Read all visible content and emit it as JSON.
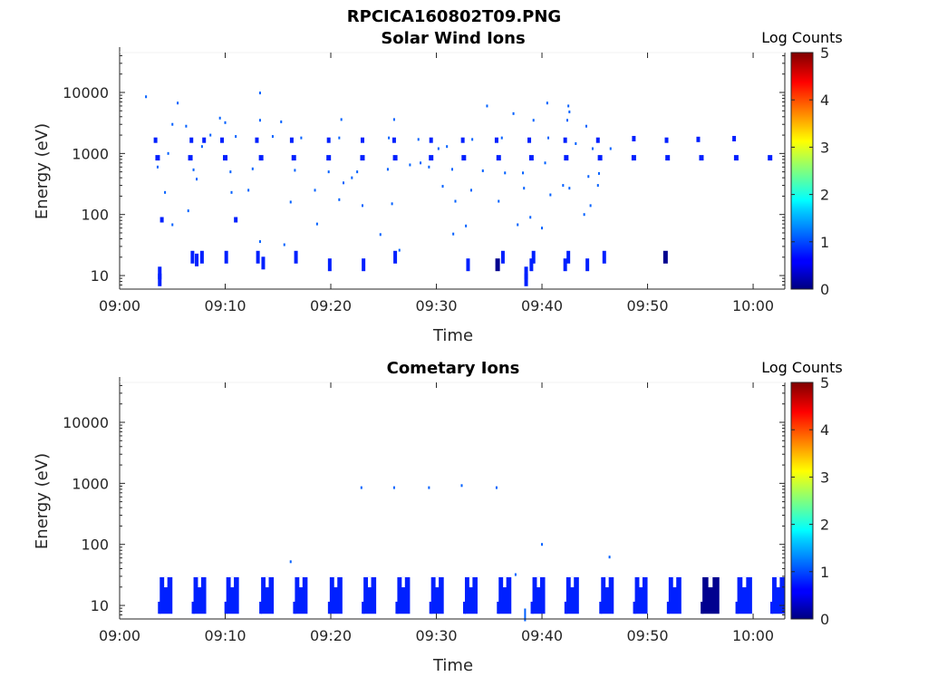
{
  "figure_title": "RPCICA160802T09.PNG",
  "colors": {
    "cell_dark": "#00008f",
    "cell_medium": "#0020ff",
    "cell_light": "#0060ff"
  },
  "chart_data": [
    {
      "type": "heatmap",
      "title": "Solar Wind Ions",
      "xlabel": "Time",
      "ylabel": "Energy (eV)",
      "y_scale": "log",
      "xlim": [
        "09:00",
        "10:03"
      ],
      "ylim": [
        6,
        45000
      ],
      "x_ticks": [
        "09:00",
        "09:10",
        "09:20",
        "09:30",
        "09:40",
        "09:50",
        "10:00"
      ],
      "y_ticks": [
        "10",
        "100",
        "1000",
        "10000"
      ],
      "colorbar": {
        "label": "Log Counts",
        "ticks": [
          "0",
          "1",
          "2",
          "3",
          "4",
          "5"
        ],
        "range": [
          0,
          5
        ]
      },
      "points": [
        {
          "t": 2.5,
          "e": 8500,
          "v": 0.3
        },
        {
          "t": 5.5,
          "e": 6700,
          "v": 0.3
        },
        {
          "t": 13.3,
          "e": 9800,
          "v": 0.3
        },
        {
          "t": 3.4,
          "e": 1650,
          "v": 0.5
        },
        {
          "t": 6.8,
          "e": 1650,
          "v": 0.5
        },
        {
          "t": 8,
          "e": 1650,
          "v": 0.5
        },
        {
          "t": 9.7,
          "e": 1650,
          "v": 0.5
        },
        {
          "t": 13,
          "e": 1650,
          "v": 0.5
        },
        {
          "t": 16.3,
          "e": 1650,
          "v": 0.5
        },
        {
          "t": 19.8,
          "e": 1650,
          "v": 0.5
        },
        {
          "t": 23,
          "e": 1650,
          "v": 0.5
        },
        {
          "t": 26,
          "e": 1650,
          "v": 0.5
        },
        {
          "t": 29.5,
          "e": 1650,
          "v": 0.5
        },
        {
          "t": 32.5,
          "e": 1650,
          "v": 0.5
        },
        {
          "t": 35.7,
          "e": 1650,
          "v": 0.5
        },
        {
          "t": 38.8,
          "e": 1650,
          "v": 0.5
        },
        {
          "t": 42.2,
          "e": 1650,
          "v": 0.5
        },
        {
          "t": 45.3,
          "e": 1650,
          "v": 0.5
        },
        {
          "t": 48.7,
          "e": 1750,
          "v": 0.6
        },
        {
          "t": 51.8,
          "e": 1650,
          "v": 0.6
        },
        {
          "t": 54.8,
          "e": 1700,
          "v": 0.6
        },
        {
          "t": 58.2,
          "e": 1750,
          "v": 0.6
        },
        {
          "t": 3.6,
          "e": 850,
          "v": 0.7
        },
        {
          "t": 6.7,
          "e": 850,
          "v": 0.7
        },
        {
          "t": 10,
          "e": 850,
          "v": 0.7
        },
        {
          "t": 13.4,
          "e": 850,
          "v": 0.7
        },
        {
          "t": 16.5,
          "e": 850,
          "v": 0.7
        },
        {
          "t": 19.8,
          "e": 850,
          "v": 0.7
        },
        {
          "t": 23,
          "e": 850,
          "v": 0.7
        },
        {
          "t": 26.1,
          "e": 850,
          "v": 0.7
        },
        {
          "t": 29.5,
          "e": 850,
          "v": 0.7
        },
        {
          "t": 32.6,
          "e": 850,
          "v": 0.7
        },
        {
          "t": 35.9,
          "e": 850,
          "v": 0.7
        },
        {
          "t": 39,
          "e": 850,
          "v": 0.7
        },
        {
          "t": 42.3,
          "e": 850,
          "v": 0.7
        },
        {
          "t": 45.5,
          "e": 850,
          "v": 0.7
        },
        {
          "t": 48.7,
          "e": 850,
          "v": 0.8
        },
        {
          "t": 51.9,
          "e": 850,
          "v": 0.8
        },
        {
          "t": 55.1,
          "e": 850,
          "v": 0.8
        },
        {
          "t": 58.4,
          "e": 850,
          "v": 0.8
        },
        {
          "t": 61.6,
          "e": 850,
          "v": 0.8
        },
        {
          "t": 5,
          "e": 3000,
          "v": 0.3
        },
        {
          "t": 9.5,
          "e": 3800,
          "v": 0.3
        },
        {
          "t": 10,
          "e": 3200,
          "v": 0.3
        },
        {
          "t": 13.3,
          "e": 3500,
          "v": 0.3
        },
        {
          "t": 15.3,
          "e": 3300,
          "v": 0.3
        },
        {
          "t": 21,
          "e": 3600,
          "v": 0.3
        },
        {
          "t": 26,
          "e": 3600,
          "v": 0.3
        },
        {
          "t": 34.8,
          "e": 6000,
          "v": 0.3
        },
        {
          "t": 37.3,
          "e": 4500,
          "v": 0.3
        },
        {
          "t": 40.5,
          "e": 6700,
          "v": 0.3
        },
        {
          "t": 42.5,
          "e": 6000,
          "v": 0.3
        },
        {
          "t": 42.6,
          "e": 4800,
          "v": 0.3
        },
        {
          "t": 42.4,
          "e": 3500,
          "v": 0.3
        },
        {
          "t": 44.2,
          "e": 2800,
          "v": 0.3
        },
        {
          "t": 39.2,
          "e": 3500,
          "v": 0.3
        },
        {
          "t": 6.3,
          "e": 2800,
          "v": 0.3
        },
        {
          "t": 8.6,
          "e": 2000,
          "v": 0.3
        },
        {
          "t": 11,
          "e": 1900,
          "v": 0.3
        },
        {
          "t": 14.5,
          "e": 1900,
          "v": 0.3
        },
        {
          "t": 17.2,
          "e": 1800,
          "v": 0.3
        },
        {
          "t": 20.8,
          "e": 1800,
          "v": 0.3
        },
        {
          "t": 25.5,
          "e": 1800,
          "v": 0.3
        },
        {
          "t": 28.3,
          "e": 1700,
          "v": 0.3
        },
        {
          "t": 33.4,
          "e": 1700,
          "v": 0.3
        },
        {
          "t": 36.2,
          "e": 1800,
          "v": 0.3
        },
        {
          "t": 40.6,
          "e": 1800,
          "v": 0.3
        },
        {
          "t": 43.2,
          "e": 1450,
          "v": 0.3
        },
        {
          "t": 46.5,
          "e": 1200,
          "v": 0.3
        },
        {
          "t": 44.8,
          "e": 1200,
          "v": 0.3
        },
        {
          "t": 31,
          "e": 1300,
          "v": 0.3
        },
        {
          "t": 30.2,
          "e": 1200,
          "v": 0.3
        },
        {
          "t": 7.8,
          "e": 1300,
          "v": 0.3
        },
        {
          "t": 4.6,
          "e": 1000,
          "v": 0.3
        },
        {
          "t": 3.6,
          "e": 600,
          "v": 0.3
        },
        {
          "t": 7,
          "e": 540,
          "v": 0.3
        },
        {
          "t": 10.5,
          "e": 500,
          "v": 0.3
        },
        {
          "t": 12.6,
          "e": 560,
          "v": 0.3
        },
        {
          "t": 16.6,
          "e": 530,
          "v": 0.3
        },
        {
          "t": 19.8,
          "e": 500,
          "v": 0.3
        },
        {
          "t": 22.5,
          "e": 500,
          "v": 0.3
        },
        {
          "t": 25.4,
          "e": 550,
          "v": 0.3
        },
        {
          "t": 27.5,
          "e": 650,
          "v": 0.3
        },
        {
          "t": 28.5,
          "e": 700,
          "v": 0.3
        },
        {
          "t": 29.3,
          "e": 600,
          "v": 0.3
        },
        {
          "t": 31.5,
          "e": 550,
          "v": 0.3
        },
        {
          "t": 34.4,
          "e": 520,
          "v": 0.3
        },
        {
          "t": 36.5,
          "e": 480,
          "v": 0.3
        },
        {
          "t": 38.2,
          "e": 480,
          "v": 0.3
        },
        {
          "t": 40.3,
          "e": 700,
          "v": 0.3
        },
        {
          "t": 44.4,
          "e": 420,
          "v": 0.3
        },
        {
          "t": 45.4,
          "e": 470,
          "v": 0.3
        },
        {
          "t": 22,
          "e": 400,
          "v": 0.3
        },
        {
          "t": 21.2,
          "e": 330,
          "v": 0.3
        },
        {
          "t": 7.3,
          "e": 380,
          "v": 0.3
        },
        {
          "t": 4.3,
          "e": 230,
          "v": 0.3
        },
        {
          "t": 10.6,
          "e": 230,
          "v": 0.3
        },
        {
          "t": 12.2,
          "e": 250,
          "v": 0.3
        },
        {
          "t": 18.5,
          "e": 250,
          "v": 0.3
        },
        {
          "t": 33.3,
          "e": 250,
          "v": 0.3
        },
        {
          "t": 30.6,
          "e": 290,
          "v": 0.3
        },
        {
          "t": 38.3,
          "e": 270,
          "v": 0.3
        },
        {
          "t": 40.8,
          "e": 210,
          "v": 0.3
        },
        {
          "t": 42,
          "e": 300,
          "v": 0.3
        },
        {
          "t": 42.6,
          "e": 270,
          "v": 0.3
        },
        {
          "t": 45.3,
          "e": 300,
          "v": 0.3
        },
        {
          "t": 16.2,
          "e": 160,
          "v": 0.3
        },
        {
          "t": 20.8,
          "e": 175,
          "v": 0.3
        },
        {
          "t": 23,
          "e": 140,
          "v": 0.3
        },
        {
          "t": 25.8,
          "e": 150,
          "v": 0.3
        },
        {
          "t": 31.8,
          "e": 165,
          "v": 0.3
        },
        {
          "t": 35.9,
          "e": 165,
          "v": 0.3
        },
        {
          "t": 44.6,
          "e": 140,
          "v": 0.3
        },
        {
          "t": 6.5,
          "e": 115,
          "v": 0.3
        },
        {
          "t": 44,
          "e": 100,
          "v": 0.3
        },
        {
          "t": 38.9,
          "e": 90,
          "v": 0.3
        },
        {
          "t": 4,
          "e": 82,
          "v": 0.5
        },
        {
          "t": 11,
          "e": 82,
          "v": 0.5
        },
        {
          "t": 5,
          "e": 68,
          "v": 0.3
        },
        {
          "t": 18.7,
          "e": 70,
          "v": 0.3
        },
        {
          "t": 32.8,
          "e": 65,
          "v": 0.3
        },
        {
          "t": 37.7,
          "e": 68,
          "v": 0.3
        },
        {
          "t": 40,
          "e": 60,
          "v": 0.3
        },
        {
          "t": 31.6,
          "e": 48,
          "v": 0.3
        },
        {
          "t": 24.7,
          "e": 47,
          "v": 0.3
        },
        {
          "t": 13.3,
          "e": 36,
          "v": 0.4
        },
        {
          "t": 15.6,
          "e": 32,
          "v": 0.4
        },
        {
          "t": 26.5,
          "e": 26,
          "v": 0.4
        },
        {
          "t": 6.9,
          "e": 20,
          "v": 0.6
        },
        {
          "t": 7.3,
          "e": 18,
          "v": 0.6
        },
        {
          "t": 7.8,
          "e": 20,
          "v": 0.6
        },
        {
          "t": 10.1,
          "e": 20,
          "v": 0.6
        },
        {
          "t": 13.1,
          "e": 20,
          "v": 0.6
        },
        {
          "t": 13.6,
          "e": 16,
          "v": 0.6
        },
        {
          "t": 16.7,
          "e": 20,
          "v": 0.6
        },
        {
          "t": 26.1,
          "e": 20,
          "v": 0.6
        },
        {
          "t": 36.3,
          "e": 20,
          "v": 0.6
        },
        {
          "t": 39.2,
          "e": 20,
          "v": 0.6
        },
        {
          "t": 42.5,
          "e": 20,
          "v": 0.6
        },
        {
          "t": 45.9,
          "e": 20,
          "v": 0.6
        },
        {
          "t": 51.7,
          "e": 20,
          "v": 0.9
        },
        {
          "t": 19.9,
          "e": 15,
          "v": 0.6
        },
        {
          "t": 23.1,
          "e": 15,
          "v": 0.6
        },
        {
          "t": 33,
          "e": 15,
          "v": 0.6
        },
        {
          "t": 35.8,
          "e": 15,
          "v": 0.9
        },
        {
          "t": 39,
          "e": 15,
          "v": 0.6
        },
        {
          "t": 42.2,
          "e": 15,
          "v": 0.6
        },
        {
          "t": 44.3,
          "e": 15,
          "v": 0.6
        },
        {
          "t": 3.8,
          "e": 11,
          "v": 0.6
        },
        {
          "t": 3.8,
          "e": 8.5,
          "v": 0.6
        },
        {
          "t": 38.5,
          "e": 11,
          "v": 0.6
        },
        {
          "t": 38.5,
          "e": 8.5,
          "v": 0.6
        }
      ]
    },
    {
      "type": "heatmap",
      "title": "Cometary Ions",
      "xlabel": "Time",
      "ylabel": "Energy (eV)",
      "y_scale": "log",
      "xlim": [
        "09:00",
        "10:03"
      ],
      "ylim": [
        6,
        45000
      ],
      "x_ticks": [
        "09:00",
        "09:10",
        "09:20",
        "09:30",
        "09:40",
        "09:50",
        "10:00"
      ],
      "y_ticks": [
        "10",
        "100",
        "1000",
        "10000"
      ],
      "colorbar": {
        "label": "Log Counts",
        "ticks": [
          "0",
          "1",
          "2",
          "3",
          "4",
          "5"
        ],
        "range": [
          0,
          5
        ]
      },
      "blocks": [
        {
          "t": 3.8,
          "w": 1.2,
          "v": 0.6
        },
        {
          "t": 7,
          "w": 1.2,
          "v": 0.6
        },
        {
          "t": 10.1,
          "w": 1.2,
          "v": 0.6
        },
        {
          "t": 13.4,
          "w": 1.2,
          "v": 0.6
        },
        {
          "t": 16.6,
          "w": 1.2,
          "v": 0.6
        },
        {
          "t": 19.9,
          "w": 1.2,
          "v": 0.6
        },
        {
          "t": 23.1,
          "w": 1.2,
          "v": 0.6
        },
        {
          "t": 26.3,
          "w": 1.2,
          "v": 0.6
        },
        {
          "t": 29.5,
          "w": 1.2,
          "v": 0.6
        },
        {
          "t": 32.7,
          "w": 1.2,
          "v": 0.6
        },
        {
          "t": 35.9,
          "w": 1.2,
          "v": 0.6
        },
        {
          "t": 39.1,
          "w": 1.2,
          "v": 0.6
        },
        {
          "t": 42.3,
          "w": 1.2,
          "v": 0.6
        },
        {
          "t": 45.6,
          "w": 1.2,
          "v": 0.6
        },
        {
          "t": 48.8,
          "w": 1.2,
          "v": 0.6
        },
        {
          "t": 52,
          "w": 1.2,
          "v": 0.6
        },
        {
          "t": 55.2,
          "w": 1.6,
          "v": 0.9
        },
        {
          "t": 58.5,
          "w": 1.4,
          "v": 0.8
        },
        {
          "t": 61.8,
          "w": 1.2,
          "v": 0.7
        }
      ],
      "points": [
        {
          "t": 22.9,
          "e": 850,
          "v": 0.3
        },
        {
          "t": 26,
          "e": 850,
          "v": 0.3
        },
        {
          "t": 29.3,
          "e": 850,
          "v": 0.3
        },
        {
          "t": 32.4,
          "e": 920,
          "v": 0.3
        },
        {
          "t": 35.7,
          "e": 850,
          "v": 0.3
        },
        {
          "t": 40,
          "e": 100,
          "v": 0.3
        },
        {
          "t": 46.4,
          "e": 62,
          "v": 0.3
        },
        {
          "t": 16.2,
          "e": 52,
          "v": 0.3
        },
        {
          "t": 37.5,
          "e": 32,
          "v": 0.3
        },
        {
          "t": 38.4,
          "e": 7,
          "v": 0.4
        }
      ]
    }
  ]
}
